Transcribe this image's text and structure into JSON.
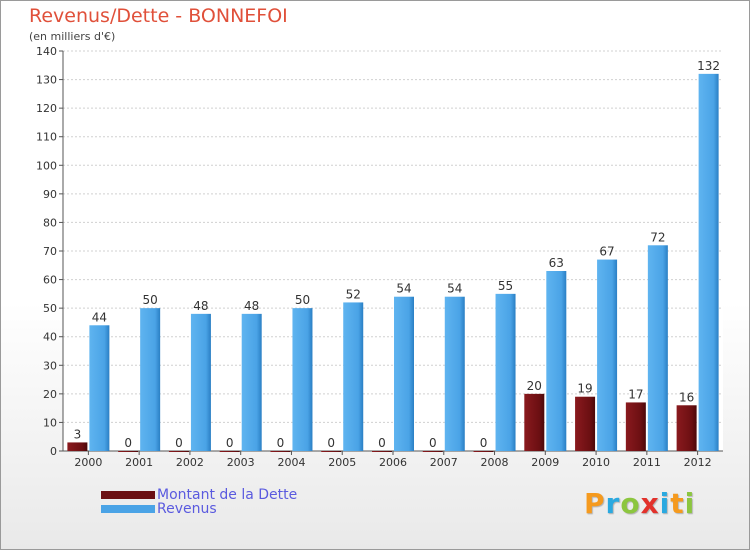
{
  "chart_data": {
    "type": "bar",
    "title": "Revenus/Dette - BONNEFOI",
    "subtitle": "(en milliers d'€)",
    "xlabel": "",
    "ylabel": "",
    "ylim": [
      0,
      140
    ],
    "yticks": [
      "0",
      "10",
      "20",
      "30",
      "40",
      "50",
      "60",
      "70",
      "80",
      "90",
      "100",
      "110",
      "120",
      "130",
      "140"
    ],
    "grid": true,
    "categories": [
      "2000",
      "2001",
      "2002",
      "2003",
      "2004",
      "2005",
      "2006",
      "2007",
      "2008",
      "2009",
      "2010",
      "2011",
      "2012"
    ],
    "series": [
      {
        "name": "Montant de la Dette",
        "color": "#6b0f12",
        "values": [
          3,
          0,
          0,
          0,
          0,
          0,
          0,
          0,
          0,
          20,
          19,
          17,
          16
        ]
      },
      {
        "name": "Revenus",
        "color": "#4aa3e6",
        "values": [
          44,
          50,
          48,
          48,
          50,
          52,
          54,
          54,
          55,
          63,
          67,
          72,
          132
        ]
      }
    ],
    "legend_position": "bottom-left"
  },
  "branding": {
    "letters": [
      "P",
      "r",
      "o",
      "x",
      "i",
      "t",
      "i"
    ],
    "colors": [
      "#f59a1e",
      "#2aa9e0",
      "#8cc63f",
      "#e2312b",
      "#2aa9e0",
      "#f59a1e",
      "#8cc63f"
    ]
  }
}
